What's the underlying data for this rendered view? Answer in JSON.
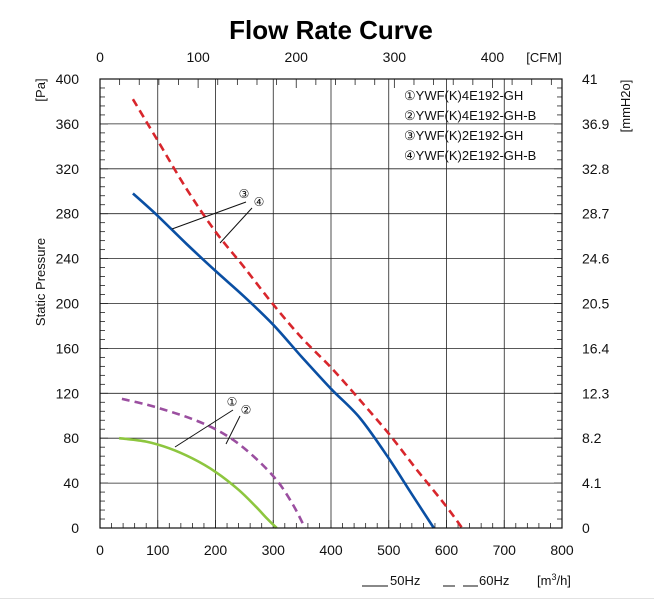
{
  "chart_data": {
    "type": "line",
    "title": "Flow Rate Curve",
    "ylabel": "Static Pressure",
    "x_unit": "[m³/h]",
    "x_top_unit": "[CFM]",
    "y_left_unit": "[Pa]",
    "y_right_unit": "[mmH2o]",
    "xlim": [
      0,
      800
    ],
    "ylim": [
      0,
      400
    ],
    "x_ticks": [
      "0",
      "100",
      "200",
      "300",
      "400",
      "500",
      "600",
      "700",
      "800"
    ],
    "x_top_ticks": [
      "0",
      "100",
      "200",
      "300",
      "400"
    ],
    "y_ticks": [
      "0",
      "40",
      "80",
      "120",
      "160",
      "200",
      "240",
      "280",
      "320",
      "360",
      "400"
    ],
    "y_right_ticks": [
      "0",
      "4.1",
      "8.2",
      "12.3",
      "16.4",
      "20.5",
      "24.6",
      "28.7",
      "32.8",
      "36.9",
      "41"
    ],
    "grid": true,
    "legend_position": "top-right",
    "legend": [
      "①YWF(K)4E192-GH",
      "②YWF(K)4E192-GH-B",
      "③YWF(K)2E192-GH",
      "④YWF(K)2E192-GH-B"
    ],
    "series": [
      {
        "color": "#8dc63f",
        "dash": "solid",
        "x": [
          33,
          80,
          120,
          160,
          200,
          240,
          270,
          290,
          306
        ],
        "y": [
          80,
          77,
          71,
          62,
          50,
          34,
          19,
          8,
          0
        ]
      },
      {
        "color": "#9b4fa0",
        "dash": "dashed",
        "x": [
          38,
          80,
          120,
          160,
          200,
          240,
          280,
          310,
          335,
          355
        ],
        "y": [
          115,
          110,
          104,
          97,
          88,
          75,
          57,
          40,
          20,
          0
        ]
      },
      {
        "color": "#0a4fa3",
        "dash": "solid",
        "x": [
          57,
          100,
          150,
          200,
          250,
          300,
          350,
          400,
          450,
          500,
          540,
          578
        ],
        "y": [
          298,
          278,
          253,
          229,
          206,
          181,
          152,
          124,
          98,
          62,
          30,
          0
        ]
      },
      {
        "color": "#d8262c",
        "dash": "dashed",
        "x": [
          57,
          100,
          150,
          200,
          250,
          300,
          350,
          400,
          450,
          500,
          550,
          600,
          627
        ],
        "y": [
          382,
          345,
          302,
          264,
          232,
          199,
          169,
          143,
          114,
          84,
          51,
          19,
          0
        ]
      }
    ],
    "annotations": [
      {
        "text": "①",
        "targets": [
          "①",
          "②"
        ]
      },
      {
        "text": "②"
      },
      {
        "text": "③",
        "targets": [
          "③",
          "④"
        ]
      },
      {
        "text": "④"
      }
    ],
    "line_key": [
      {
        "label": "50Hz",
        "style": "solid"
      },
      {
        "label": "60Hz",
        "style": "dashed"
      }
    ]
  }
}
